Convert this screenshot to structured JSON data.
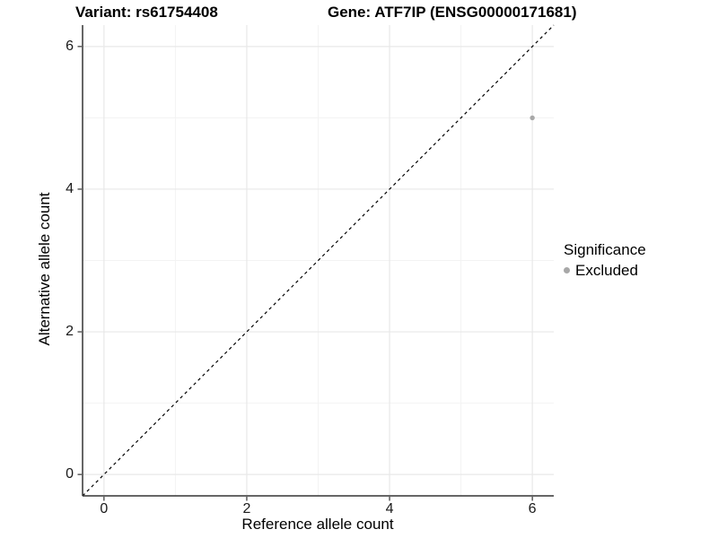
{
  "chart_data": {
    "type": "scatter",
    "titles": [
      "Variant: rs61754408",
      "Gene: ATF7IP (ENSG00000171681)"
    ],
    "xlabel": "Reference allele count",
    "ylabel": "Alternative allele count",
    "xlim": [
      -0.3,
      6.3
    ],
    "ylim": [
      -0.3,
      6.3
    ],
    "x_ticks": [
      0,
      2,
      4,
      6
    ],
    "y_ticks": [
      0,
      2,
      4,
      6
    ],
    "x_minor_ticks": [
      1,
      3,
      5
    ],
    "y_minor_ticks": [
      1,
      3,
      5
    ],
    "grid": "major+minor",
    "series": [
      {
        "name": "Excluded",
        "color": "#a8a8a8",
        "marker": "dot",
        "points": [
          [
            6,
            5
          ]
        ]
      }
    ],
    "reference_line": {
      "kind": "identity",
      "from": [
        -0.3,
        -0.3
      ],
      "to": [
        6.3,
        6.3
      ],
      "style": "dashed",
      "color": "#000000"
    },
    "legend": {
      "title": "Significance",
      "position": "right",
      "entries": [
        {
          "label": "Excluded",
          "color": "#a8a8a8",
          "marker": "dot"
        }
      ]
    },
    "colors": {
      "background": "#ffffff",
      "grid_major": "#e8e8e8",
      "grid_minor": "#f3f3f3",
      "axis_line": "#333333",
      "tick_mark": "#333333",
      "tick_text": "#1a1a1a",
      "label_text": "#000000"
    }
  }
}
